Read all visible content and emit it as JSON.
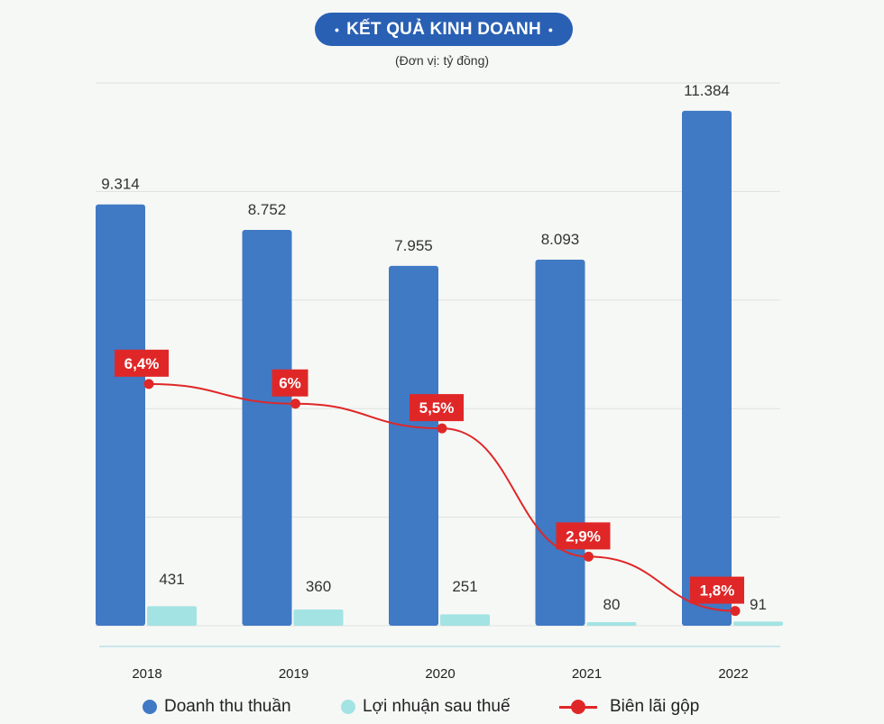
{
  "header": {
    "title": "KẾT QUẢ KINH DOANH",
    "bullet": "•",
    "unit": "(Đơn vị:  tỷ đồng)"
  },
  "colors": {
    "revenue": "#4079c4",
    "profit": "#a3e3e3",
    "margin": "#e02727",
    "title_bg": "#2960b3",
    "grid": "#dde2de"
  },
  "chart_data": {
    "type": "bar",
    "title": "KẾT QUẢ KINH DOANH",
    "subtitle": "(Đơn vị:  tỷ đồng)",
    "categories": [
      "2018",
      "2019",
      "2020",
      "2021",
      "2022"
    ],
    "series": [
      {
        "name": "Doanh thu thuần",
        "type": "bar",
        "values": [
          9314,
          8752,
          7955,
          8093,
          11384
        ],
        "labels": [
          "9.314",
          "8.752",
          "7.955",
          "8.093",
          "11.384"
        ]
      },
      {
        "name": "Lợi nhuận sau thuế",
        "type": "bar",
        "values": [
          431,
          360,
          251,
          80,
          91
        ],
        "labels": [
          "431",
          "360",
          "251",
          "80",
          "91"
        ]
      },
      {
        "name": "Biên lãi gộp",
        "type": "line",
        "unit": "%",
        "values": [
          6.4,
          6.0,
          5.5,
          2.9,
          1.8
        ],
        "labels": [
          "6,4%",
          "6%",
          "5,5%",
          "2,9%",
          "1,8%"
        ]
      }
    ],
    "ylim": [
      0,
      12000
    ],
    "y2lim": [
      1.5,
      12.5
    ],
    "grid": true,
    "legend_position": "bottom"
  },
  "legend": {
    "items": [
      "Doanh thu thuần",
      "Lợi nhuận sau thuế",
      "Biên lãi gộp"
    ]
  }
}
